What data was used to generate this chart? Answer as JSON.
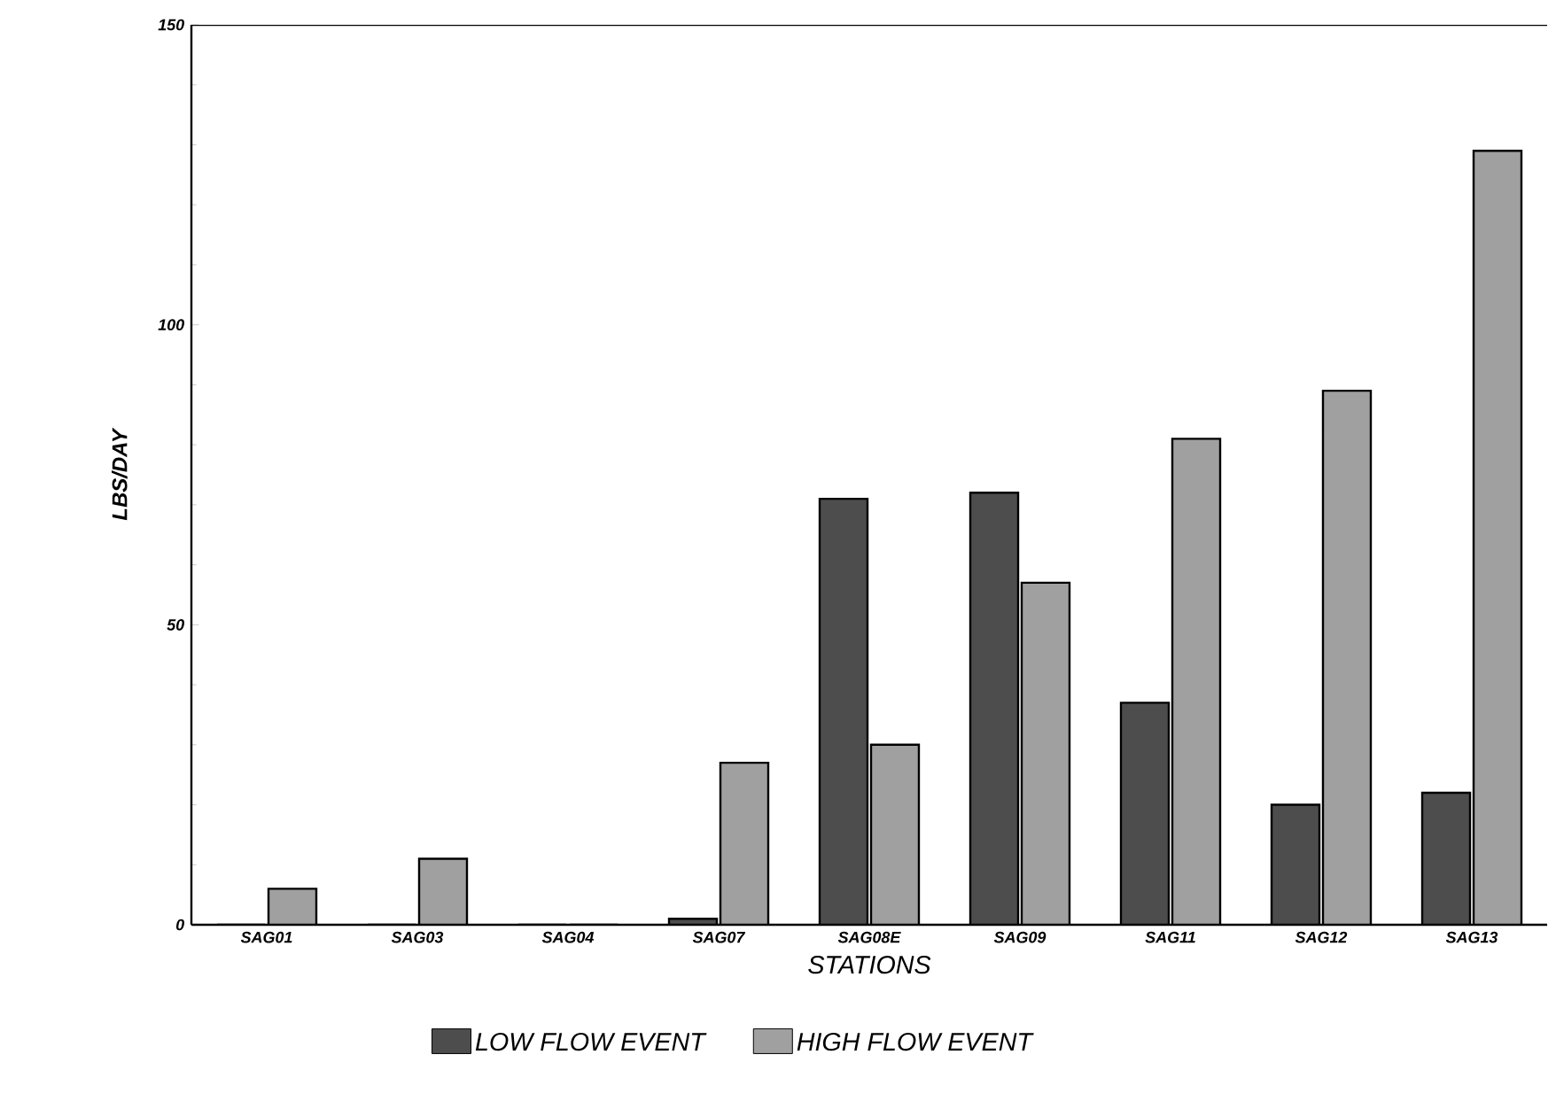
{
  "chart_data": {
    "type": "bar",
    "xlabel": "STATIONS",
    "ylabel": "LBS/DAY",
    "categories": [
      "SAG01",
      "SAG03",
      "SAG04",
      "SAG07",
      "SAG08E",
      "SAG09",
      "SAG11",
      "SAG12",
      "SAG13"
    ],
    "series": [
      {
        "name": "LOW FLOW EVENT",
        "color": "#4d4d4d",
        "values": [
          0,
          0,
          0,
          1,
          71,
          72,
          37,
          20,
          22
        ]
      },
      {
        "name": "HIGH FLOW EVENT",
        "color": "#a0a0a0",
        "values": [
          6,
          11,
          0,
          27,
          30,
          57,
          81,
          89,
          129
        ]
      }
    ],
    "ylim": [
      0,
      150
    ],
    "yticks": [
      0,
      50,
      100,
      150
    ],
    "grid": false,
    "legend": "bottom"
  }
}
